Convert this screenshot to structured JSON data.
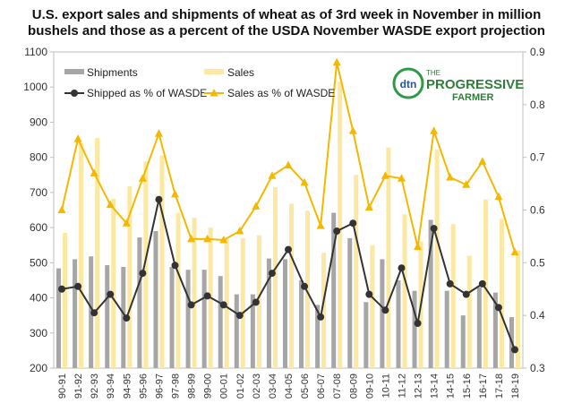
{
  "chart_data": {
    "type": "bar",
    "title_line1": "U.S. export sales and shipments of wheat as of 3rd week in November in million",
    "title_line2": "bushels and those as a percent of the USDA November WASDE export projection",
    "grid": false,
    "legend_placement": "top-left",
    "logo_text": "dtn THE PROGRESSIVE FARMER",
    "categories": [
      "90-91",
      "91-92",
      "92-93",
      "93-94",
      "94-95",
      "95-96",
      "96-97",
      "97-98",
      "98-99",
      "99-00",
      "00-01",
      "01-02",
      "02-03",
      "03-04",
      "04-05",
      "05-06",
      "06-07",
      "07-08",
      "08-09",
      "09-10",
      "10-11",
      "11-12",
      "12-13",
      "13-14",
      "14-15",
      "15-16",
      "16-17",
      "17-18",
      "18-19"
    ],
    "left_axis": {
      "min": 200,
      "max": 1100,
      "ticks": [
        200,
        300,
        400,
        500,
        600,
        700,
        800,
        900,
        1000,
        1100
      ]
    },
    "right_axis": {
      "min": 0.3,
      "max": 0.9,
      "ticks": [
        "0.3",
        "0.4",
        "0.5",
        "0.6",
        "0.7",
        "0.8",
        "0.9"
      ]
    },
    "series": [
      {
        "name": "Shipments",
        "kind": "bar",
        "axis": "left",
        "color": "#a6a6a6",
        "values": [
          484,
          510,
          518,
          493,
          488,
          572,
          590,
          488,
          480,
          480,
          462,
          410,
          410,
          512,
          510,
          450,
          380,
          642,
          570,
          388,
          510,
          450,
          420,
          622,
          420,
          350,
          430,
          415,
          345
        ]
      },
      {
        "name": "Sales",
        "kind": "bar",
        "axis": "left",
        "color": "#fbe8a3",
        "values": [
          585,
          840,
          855,
          682,
          718,
          788,
          805,
          642,
          628,
          600,
          568,
          570,
          578,
          715,
          668,
          648,
          528,
          1015,
          750,
          550,
          828,
          638,
          560,
          822,
          610,
          520,
          680,
          625,
          535
        ]
      },
      {
        "name": "Shipped as % of WASDE",
        "kind": "line",
        "axis": "right",
        "color": "#333333",
        "marker": "circle",
        "values": [
          0.45,
          0.455,
          0.405,
          0.44,
          0.395,
          0.48,
          0.62,
          0.495,
          0.42,
          0.437,
          0.42,
          0.4,
          0.425,
          0.48,
          0.525,
          0.455,
          0.397,
          0.56,
          0.575,
          0.44,
          0.41,
          0.49,
          0.385,
          0.565,
          0.46,
          0.44,
          0.46,
          0.415,
          0.335
        ]
      },
      {
        "name": "Sales as % of WASDE",
        "kind": "line",
        "axis": "right",
        "color": "#f4b800",
        "marker": "triangle",
        "values": [
          0.6,
          0.735,
          0.67,
          0.61,
          0.575,
          0.66,
          0.745,
          0.63,
          0.545,
          0.545,
          0.543,
          0.56,
          0.607,
          0.665,
          0.685,
          0.652,
          0.57,
          0.88,
          0.75,
          0.605,
          0.665,
          0.66,
          0.53,
          0.75,
          0.662,
          0.648,
          0.692,
          0.625,
          0.52
        ]
      }
    ]
  }
}
